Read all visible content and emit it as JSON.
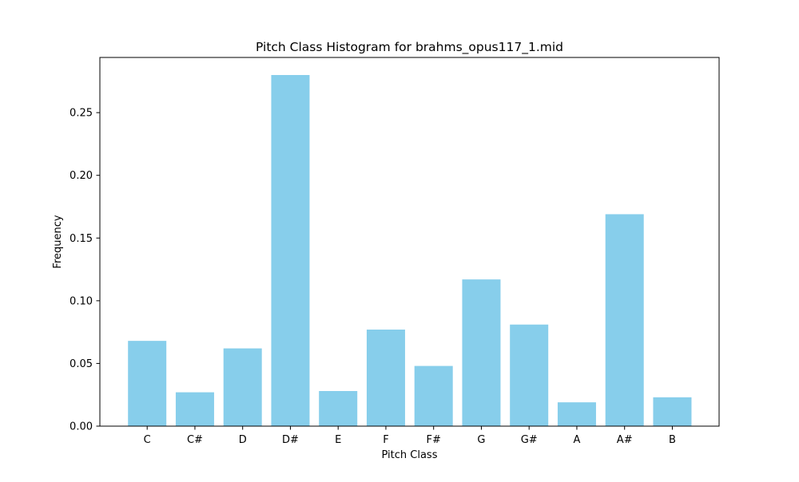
{
  "colors": {
    "bar": "#87ceeb",
    "axis": "#000000",
    "background": "#ffffff"
  },
  "chart_data": {
    "type": "bar",
    "title": "Pitch Class Histogram for brahms_opus117_1.mid",
    "xlabel": "Pitch Class",
    "ylabel": "Frequency",
    "categories": [
      "C",
      "C#",
      "D",
      "D#",
      "E",
      "F",
      "F#",
      "G",
      "G#",
      "A",
      "A#",
      "B"
    ],
    "values": [
      0.068,
      0.027,
      0.062,
      0.28,
      0.028,
      0.077,
      0.048,
      0.117,
      0.081,
      0.019,
      0.169,
      0.023
    ],
    "yticks": [
      0.0,
      0.05,
      0.1,
      0.15,
      0.2,
      0.25
    ],
    "ytick_labels": [
      "0.00",
      "0.05",
      "0.10",
      "0.15",
      "0.20",
      "0.25"
    ],
    "ylim": [
      0,
      0.294
    ],
    "grid": false,
    "legend": false
  }
}
